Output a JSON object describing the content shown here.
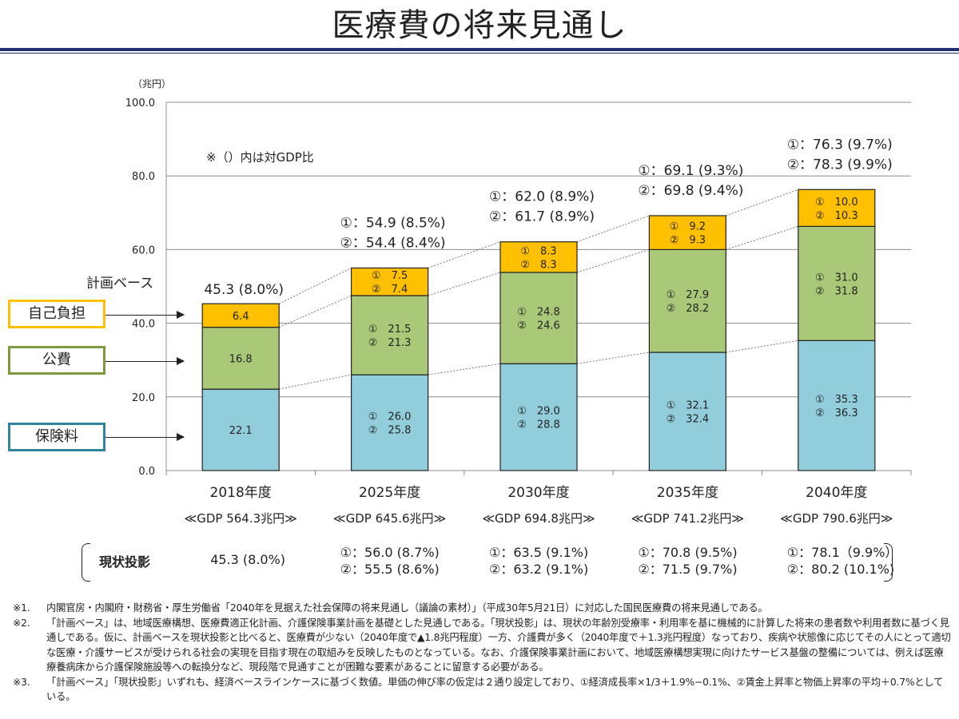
{
  "title": "医療費の将来見通し",
  "chart_data": {
    "type": "bar",
    "stacked": true,
    "categories": [
      "2018年度",
      "2025年度",
      "2030年度",
      "2035年度",
      "2040年度"
    ],
    "gdp_labels": [
      "≪GDP 564.3兆円≫",
      "≪GDP 645.6兆円≫",
      "≪GDP 694.8兆円≫",
      "≪GDP 741.2兆円≫",
      "≪GDP 790.6兆円≫"
    ],
    "ylabel": "（兆円）",
    "ylim": [
      0,
      100
    ],
    "yticks": [
      0,
      20,
      40,
      60,
      80,
      100
    ],
    "ytick_labels": [
      "0.0",
      "20.0",
      "40.0",
      "60.0",
      "80.0",
      "100.0"
    ],
    "grid": true,
    "series": [
      {
        "name": "保険料",
        "color": "#92cddc",
        "values": [
          22.1,
          26.0,
          29.0,
          32.1,
          35.3
        ],
        "values_alt": [
          null,
          25.8,
          28.8,
          32.4,
          36.3
        ]
      },
      {
        "name": "公費",
        "color": "#a9c878",
        "values": [
          16.8,
          21.5,
          24.8,
          27.9,
          31.0
        ],
        "values_alt": [
          null,
          21.3,
          24.6,
          28.2,
          31.8
        ]
      },
      {
        "name": "自己負担",
        "color": "#ffc000",
        "values": [
          6.4,
          7.5,
          8.3,
          9.2,
          10.0
        ],
        "values_alt": [
          null,
          7.4,
          8.3,
          9.3,
          10.3
        ]
      }
    ],
    "segment_labels": [
      [
        [
          "22.1"
        ],
        [
          "①　26.0",
          "②　25.8"
        ],
        [
          "①　29.0",
          "②　28.8"
        ],
        [
          "①　32.1",
          "②　32.4"
        ],
        [
          "①　35.3",
          "②　36.3"
        ]
      ],
      [
        [
          "16.8"
        ],
        [
          "①　21.5",
          "②　21.3"
        ],
        [
          "①　24.8",
          "②　24.6"
        ],
        [
          "①　27.9",
          "②　28.2"
        ],
        [
          "①　31.0",
          "②　31.8"
        ]
      ],
      [
        [
          "6.4"
        ],
        [
          "①　7.5",
          "②　7.4"
        ],
        [
          "①　8.3",
          "②　8.3"
        ],
        [
          "①　9.2",
          "②　9.3"
        ],
        [
          "①　10.0",
          "②　10.3"
        ]
      ]
    ],
    "totals": [
      45.3,
      54.9,
      62.0,
      69.1,
      76.3
    ],
    "totals_alt": [
      null,
      54.4,
      61.7,
      69.8,
      78.3
    ],
    "total_labels": [
      [
        "45.3 (8.0%)"
      ],
      [
        "①：54.9 (8.5%)",
        "②：54.4 (8.4%)"
      ],
      [
        "①：62.0 (8.9%)",
        "②：61.7 (8.9%)"
      ],
      [
        "①：69.1 (9.3%)",
        "②：69.8 (9.4%)"
      ],
      [
        "①：76.3 (9.7%)",
        "②：78.3 (9.9%)"
      ]
    ],
    "annotation": "※（）内は対GDP比",
    "plan_label": "計画ベース"
  },
  "legend": {
    "self_pay": {
      "label": "自己負担",
      "color": "#ffc000"
    },
    "public": {
      "label": "公費",
      "color": "#7e9a3e"
    },
    "premium": {
      "label": "保険料",
      "color": "#31849b"
    }
  },
  "current_projection": {
    "title": "現状投影",
    "values": [
      [
        "45.3 (8.0%)"
      ],
      [
        "①：56.0 (8.7%)",
        "②：55.5 (8.6%)"
      ],
      [
        "①：63.5 (9.1%)",
        "②：63.2 (9.1%)"
      ],
      [
        "①：70.8 (9.5%)",
        "②：71.5 (9.7%)"
      ],
      [
        "①：78.1（9.9%）",
        "②：80.2 (10.1%)"
      ]
    ]
  },
  "notes": [
    {
      "mark": "※1.",
      "text": "内閣官房・内閣府・財務省・厚生労働省「2040年を見据えた社会保障の将来見通し（議論の素材）」（平成30年5月21日）に対応した国民医療費の将来見通しである。"
    },
    {
      "mark": "※2.",
      "text": "「計画ベース」は、地域医療構想、医療費適正化計画、介護保険事業計画を基礎とした見通しである。「現状投影」は、現状の年齢別受療率・利用率を基に機械的に計算した将来の患者数や利用者数に基づく見通しである。仮に、計画ベースを現状投影と比べると、医療費が少ない（2040年度で▲1.8兆円程度）一方、介護費が多く（2040年度で＋1.3兆円程度）なっており、疾病や状態像に応じてその人にとって適切な医療・介護サービスが受けられる社会の実現を目指す現在の取組みを反映したものとなっている。なお、介護保険事業計画において、地域医療構想実現に向けたサービス基盤の整備については、例えば医療療養病床から介護保険施設等への転換分など、現段階で見通すことが困難な要素があることに留意する必要がある。"
    },
    {
      "mark": "※3.",
      "text": "「計画ベース」「現状投影」いずれも、経済ベースラインケースに基づく数値。単価の伸び率の仮定は２通り設定しており、①経済成長率×1/3＋1.9%−0.1%、②賃金上昇率と物価上昇率の平均＋0.7%としている。"
    }
  ]
}
